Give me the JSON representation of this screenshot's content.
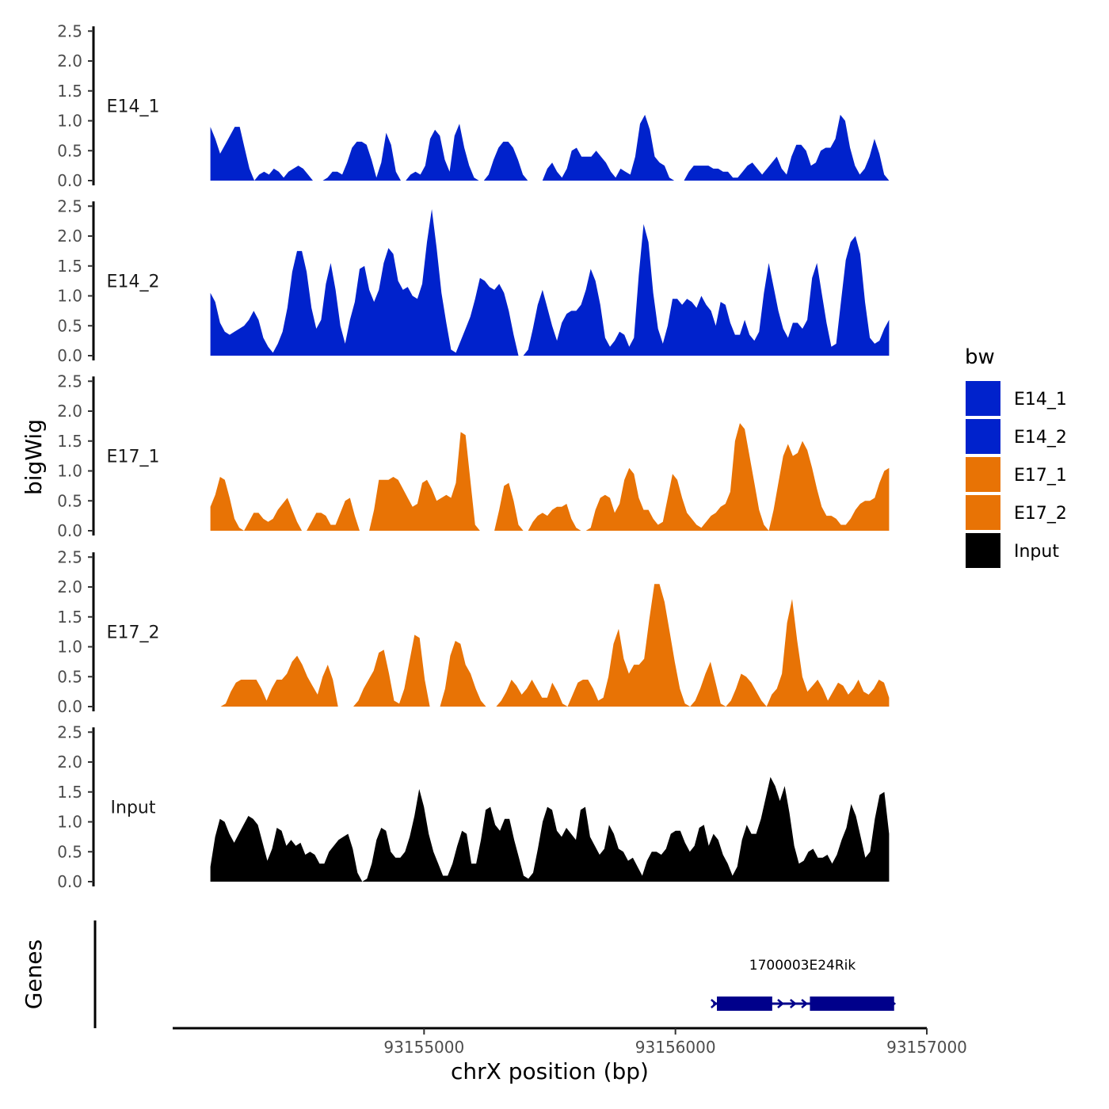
{
  "chart_data": {
    "type": "area",
    "ylabel": "bigWig",
    "genes_label": "Genes",
    "xlabel": "chrX position (bp)",
    "xlim": [
      93154000,
      93157000
    ],
    "data_x_range": [
      93154150,
      93156850
    ],
    "ylim": [
      0,
      2.5
    ],
    "y_ticks": [
      0,
      0.5,
      1,
      1.5,
      2,
      2.5
    ],
    "y_tick_labels": [
      "0.0",
      "0.5",
      "1.0",
      "1.5",
      "2.0",
      "2.5"
    ],
    "x_ticks": [
      93155000,
      93156000,
      93157000
    ],
    "x_tick_labels": [
      "93155000",
      "93156000",
      "93157000"
    ],
    "legend": {
      "title": "bw",
      "entries": [
        {
          "label": "E14_1",
          "color": "#0022cc"
        },
        {
          "label": "E14_2",
          "color": "#0022cc"
        },
        {
          "label": "E17_1",
          "color": "#e87305"
        },
        {
          "label": "E17_2",
          "color": "#e87305"
        },
        {
          "label": "Input",
          "color": "#000000"
        }
      ]
    },
    "series": [
      {
        "name": "E14_1",
        "color": "#0022cc",
        "values": [
          0.9,
          0.7,
          0.45,
          0.6,
          0.75,
          0.9,
          0.9,
          0.55,
          0.2,
          0.0,
          0.1,
          0.15,
          0.1,
          0.2,
          0.15,
          0.05,
          0.15,
          0.2,
          0.25,
          0.2,
          0.1,
          0,
          0,
          0,
          0.05,
          0.15,
          0.15,
          0.1,
          0.3,
          0.55,
          0.65,
          0.65,
          0.6,
          0.35,
          0.05,
          0.3,
          0.8,
          0.6,
          0.15,
          0,
          0,
          0.1,
          0.15,
          0.1,
          0.25,
          0.7,
          0.85,
          0.75,
          0.35,
          0.15,
          0.75,
          0.95,
          0.55,
          0.25,
          0.05,
          0,
          0,
          0.1,
          0.35,
          0.55,
          0.65,
          0.65,
          0.55,
          0.35,
          0.1,
          0,
          0,
          0,
          0,
          0.2,
          0.3,
          0.15,
          0.05,
          0.2,
          0.5,
          0.55,
          0.4,
          0.4,
          0.4,
          0.5,
          0.4,
          0.3,
          0.15,
          0.05,
          0.2,
          0.15,
          0.1,
          0.4,
          0.95,
          1.1,
          0.85,
          0.4,
          0.3,
          0.25,
          0.05,
          0,
          0,
          0,
          0.15,
          0.25,
          0.25,
          0.25,
          0.25,
          0.2,
          0.2,
          0.15,
          0.15,
          0.05,
          0.05,
          0.15,
          0.25,
          0.3,
          0.2,
          0.1,
          0.2,
          0.3,
          0.4,
          0.2,
          0.1,
          0.4,
          0.6,
          0.6,
          0.5,
          0.25,
          0.3,
          0.5,
          0.55,
          0.55,
          0.7,
          1.1,
          1.0,
          0.55,
          0.25,
          0.1,
          0.2,
          0.4,
          0.7,
          0.45,
          0.1,
          0
        ]
      },
      {
        "name": "E14_2",
        "color": "#0022cc",
        "values": [
          1.05,
          0.9,
          0.55,
          0.4,
          0.35,
          0.4,
          0.45,
          0.5,
          0.6,
          0.75,
          0.6,
          0.3,
          0.15,
          0.05,
          0.2,
          0.4,
          0.8,
          1.4,
          1.75,
          1.75,
          1.4,
          0.8,
          0.45,
          0.6,
          1.2,
          1.55,
          1.1,
          0.5,
          0.2,
          0.6,
          0.9,
          1.45,
          1.5,
          1.1,
          0.9,
          1.1,
          1.55,
          1.8,
          1.7,
          1.25,
          1.1,
          1.15,
          1.0,
          0.95,
          1.2,
          1.9,
          2.45,
          1.8,
          1.05,
          0.55,
          0.1,
          0.05,
          0.25,
          0.45,
          0.65,
          0.95,
          1.3,
          1.25,
          1.15,
          1.1,
          1.2,
          1.05,
          0.75,
          0.35,
          0,
          0,
          0.1,
          0.45,
          0.85,
          1.1,
          0.8,
          0.5,
          0.25,
          0.55,
          0.7,
          0.75,
          0.75,
          0.85,
          1.1,
          1.45,
          1.25,
          0.85,
          0.3,
          0.15,
          0.25,
          0.4,
          0.35,
          0.15,
          0.3,
          1.35,
          2.2,
          1.9,
          1.05,
          0.45,
          0.2,
          0.5,
          0.95,
          0.95,
          0.85,
          0.95,
          0.9,
          0.8,
          1.0,
          0.85,
          0.75,
          0.5,
          0.9,
          0.85,
          0.55,
          0.35,
          0.35,
          0.6,
          0.35,
          0.25,
          0.4,
          1.05,
          1.55,
          1.15,
          0.75,
          0.45,
          0.3,
          0.55,
          0.55,
          0.45,
          0.6,
          1.3,
          1.55,
          1.05,
          0.55,
          0.15,
          0.2,
          0.9,
          1.6,
          1.9,
          2.0,
          1.7,
          0.9,
          0.3,
          0.2,
          0.25,
          0.45,
          0.6
        ]
      },
      {
        "name": "E17_1",
        "color": "#e87305",
        "values": [
          0.4,
          0.6,
          0.9,
          0.85,
          0.55,
          0.2,
          0.05,
          0,
          0.15,
          0.3,
          0.3,
          0.2,
          0.15,
          0.2,
          0.35,
          0.45,
          0.55,
          0.35,
          0.15,
          0,
          0,
          0.15,
          0.3,
          0.3,
          0.25,
          0.1,
          0.1,
          0.3,
          0.5,
          0.55,
          0.25,
          0,
          0,
          0,
          0.35,
          0.85,
          0.85,
          0.85,
          0.9,
          0.85,
          0.7,
          0.55,
          0.4,
          0.45,
          0.8,
          0.85,
          0.7,
          0.5,
          0.55,
          0.6,
          0.55,
          0.8,
          1.65,
          1.6,
          0.85,
          0.1,
          0,
          0,
          0,
          0,
          0.35,
          0.75,
          0.8,
          0.5,
          0.1,
          0,
          0,
          0.15,
          0.25,
          0.3,
          0.25,
          0.35,
          0.4,
          0.4,
          0.45,
          0.2,
          0.05,
          0,
          0,
          0.05,
          0.35,
          0.55,
          0.6,
          0.55,
          0.3,
          0.45,
          0.85,
          1.05,
          0.95,
          0.55,
          0.35,
          0.35,
          0.2,
          0.1,
          0.15,
          0.55,
          0.95,
          0.85,
          0.55,
          0.3,
          0.2,
          0.1,
          0.05,
          0.15,
          0.25,
          0.3,
          0.4,
          0.45,
          0.65,
          1.5,
          1.8,
          1.7,
          1.25,
          0.8,
          0.35,
          0.1,
          0,
          0.35,
          0.8,
          1.25,
          1.45,
          1.25,
          1.3,
          1.5,
          1.35,
          1.05,
          0.7,
          0.4,
          0.25,
          0.25,
          0.2,
          0.1,
          0.1,
          0.2,
          0.35,
          0.45,
          0.5,
          0.5,
          0.55,
          0.8,
          1.0,
          1.05
        ]
      },
      {
        "name": "E17_2",
        "color": "#e87305",
        "values": [
          0,
          0,
          0,
          0.05,
          0.25,
          0.4,
          0.45,
          0.45,
          0.45,
          0.45,
          0.3,
          0.1,
          0.3,
          0.45,
          0.45,
          0.55,
          0.75,
          0.85,
          0.7,
          0.5,
          0.35,
          0.2,
          0.5,
          0.7,
          0.45,
          0,
          0,
          0,
          0,
          0.1,
          0.3,
          0.45,
          0.6,
          0.9,
          0.95,
          0.55,
          0.1,
          0.05,
          0.3,
          0.75,
          1.2,
          1.15,
          0.45,
          0,
          0,
          0,
          0.3,
          0.85,
          1.1,
          1.05,
          0.7,
          0.55,
          0.3,
          0.1,
          0,
          0,
          0,
          0.1,
          0.25,
          0.45,
          0.35,
          0.2,
          0.3,
          0.45,
          0.3,
          0.15,
          0.15,
          0.4,
          0.25,
          0.05,
          0,
          0.2,
          0.4,
          0.45,
          0.45,
          0.3,
          0.1,
          0.15,
          0.5,
          1.05,
          1.3,
          0.8,
          0.55,
          0.7,
          0.7,
          0.8,
          1.45,
          2.05,
          2.05,
          1.75,
          1.25,
          0.75,
          0.3,
          0.05,
          0,
          0.1,
          0.3,
          0.55,
          0.75,
          0.4,
          0.05,
          0,
          0.1,
          0.3,
          0.55,
          0.5,
          0.4,
          0.25,
          0.1,
          0,
          0.2,
          0.3,
          0.55,
          1.4,
          1.8,
          1.1,
          0.5,
          0.25,
          0.35,
          0.45,
          0.3,
          0.1,
          0.25,
          0.4,
          0.35,
          0.2,
          0.3,
          0.45,
          0.25,
          0.2,
          0.3,
          0.45,
          0.4,
          0.15
        ]
      },
      {
        "name": "Input",
        "color": "#000000",
        "values": [
          0.25,
          0.75,
          1.05,
          1.0,
          0.8,
          0.65,
          0.8,
          0.95,
          1.1,
          1.05,
          0.95,
          0.65,
          0.35,
          0.55,
          0.9,
          0.85,
          0.6,
          0.7,
          0.6,
          0.65,
          0.45,
          0.5,
          0.45,
          0.3,
          0.3,
          0.5,
          0.6,
          0.7,
          0.75,
          0.8,
          0.55,
          0.15,
          0,
          0.05,
          0.3,
          0.7,
          0.9,
          0.85,
          0.5,
          0.4,
          0.4,
          0.5,
          0.75,
          1.1,
          1.55,
          1.25,
          0.8,
          0.5,
          0.3,
          0.1,
          0.1,
          0.3,
          0.6,
          0.85,
          0.8,
          0.3,
          0.3,
          0.7,
          1.2,
          1.25,
          0.95,
          0.85,
          1.05,
          1.05,
          0.7,
          0.4,
          0.1,
          0.05,
          0.15,
          0.55,
          1.0,
          1.25,
          1.2,
          0.85,
          0.75,
          0.9,
          0.8,
          0.7,
          1.2,
          1.25,
          0.75,
          0.6,
          0.45,
          0.55,
          0.95,
          0.8,
          0.55,
          0.5,
          0.35,
          0.4,
          0.25,
          0.1,
          0.35,
          0.5,
          0.5,
          0.45,
          0.55,
          0.8,
          0.85,
          0.85,
          0.65,
          0.5,
          0.6,
          0.9,
          0.95,
          0.6,
          0.8,
          0.7,
          0.45,
          0.3,
          0.1,
          0.25,
          0.7,
          0.95,
          0.8,
          0.8,
          1.05,
          1.4,
          1.75,
          1.6,
          1.35,
          1.6,
          1.15,
          0.6,
          0.3,
          0.35,
          0.5,
          0.55,
          0.4,
          0.4,
          0.45,
          0.3,
          0.45,
          0.7,
          0.9,
          1.3,
          1.1,
          0.75,
          0.4,
          0.5,
          1.05,
          1.45,
          1.5,
          0.8
        ]
      }
    ],
    "gene": {
      "name": "1700003E24Rik",
      "color": "#00008b",
      "start": 93156150,
      "end": 93156870,
      "exons": [
        [
          93156165,
          93156385
        ],
        [
          93156535,
          93156870
        ]
      ]
    }
  }
}
